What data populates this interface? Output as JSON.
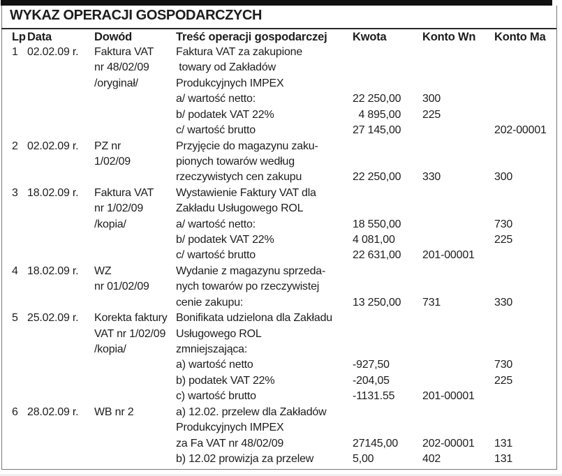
{
  "title": "WYKAZ OPERACJI GOSPODARCZYCH",
  "header": {
    "lp": "Lp",
    "data": "Data",
    "dowod": "Dowód",
    "tresc": "Treść operacji gospodarczej",
    "kwota": "Kwota",
    "wn": "Konto Wn",
    "ma": "Konto Ma"
  },
  "rows": [
    {
      "lp": "1",
      "data": "02.02.09 r.",
      "dowod": "Faktura VAT",
      "tresc": "Faktura VAT za zakupione"
    },
    {
      "dowod": "nr 48/02/09",
      "tresc": " towary od Zakładów"
    },
    {
      "dowod": "/oryginał/",
      "tresc": "Produkcyjnych IMPEX"
    },
    {
      "tresc": "a/ wartość netto:",
      "kwota": "22 250,00",
      "wn": "300"
    },
    {
      "tresc": "b/ podatek VAT 22%",
      "kwota": "  4 895,00",
      "wn": "225"
    },
    {
      "tresc": "c/ wartość brutto",
      "kwota": "27 145,00",
      "ma": "202-00001"
    },
    {
      "lp": "2",
      "data": "02.02.09 r.",
      "dowod": "PZ nr",
      "tresc": "Przyjęcie do magazynu zaku-"
    },
    {
      "dowod": "1/02/09",
      "tresc": "pionych towarów według"
    },
    {
      "tresc": "rzeczywistych cen zakupu",
      "kwota": "22 250,00",
      "wn": "330",
      "ma": "300"
    },
    {
      "lp": "3",
      "data": "18.02.09 r.",
      "dowod": "Faktura VAT",
      "tresc": "Wystawienie Faktury VAT dla"
    },
    {
      "dowod": "nr 1/02/09",
      "tresc": "Zakładu Usługowego ROL"
    },
    {
      "dowod": "/kopia/",
      "tresc": "a/ wartość netto:",
      "kwota": "18 550,00",
      "ma": "730"
    },
    {
      "tresc": "b/ podatek VAT 22%",
      "kwota": "4 081,00",
      "ma": "225"
    },
    {
      "tresc": "c/ wartość brutto",
      "kwota": "22 631,00",
      "wn": "201-00001"
    },
    {
      "lp": "4",
      "data": "18.02.09 r.",
      "dowod": "WZ",
      "tresc": "Wydanie z magazynu sprzeda-"
    },
    {
      "dowod": "nr 01/02/09",
      "tresc": "nych towarów po rzeczywistej"
    },
    {
      "tresc": "cenie zakupu:",
      "kwota": "13 250,00",
      "wn": "731",
      "ma": "330"
    },
    {
      "lp": "5",
      "data": "25.02.09 r.",
      "dowod": "Korekta faktury",
      "tresc": "Bonifikata udzielona dla Zakładu"
    },
    {
      "dowod": "VAT nr 1/02/09",
      "tresc": "Usługowego ROL"
    },
    {
      "dowod": "/kopia/",
      "tresc": "zmniejszająca:"
    },
    {
      "tresc": "a) wartość netto",
      "kwota": "-927,50",
      "ma": "730"
    },
    {
      "tresc": "b) podatek VAT 22%",
      "kwota": "-204,05",
      "ma": "225"
    },
    {
      "tresc": "c) wartość brutto",
      "kwota": "-1131.55",
      "wn": "201-00001"
    },
    {
      "lp": "6",
      "data": "28.02.09 r.",
      "dowod": "WB nr 2",
      "tresc": "a) 12.02. przelew dla Zakładów"
    },
    {
      "tresc": "Produkcyjnych IMPEX"
    },
    {
      "tresc": "za Fa VAT nr 48/02/09",
      "kwota": "27145,00",
      "wn": "202-00001",
      "ma": "131"
    },
    {
      "tresc": "b) 12.02 prowizja za przelew",
      "kwota": "5,00",
      "wn": "402",
      "ma": "131"
    }
  ],
  "colors": {
    "top_bar": "#111111",
    "text": "#1d1d1d",
    "border": "#777777",
    "separator": "#2a2a2a"
  }
}
